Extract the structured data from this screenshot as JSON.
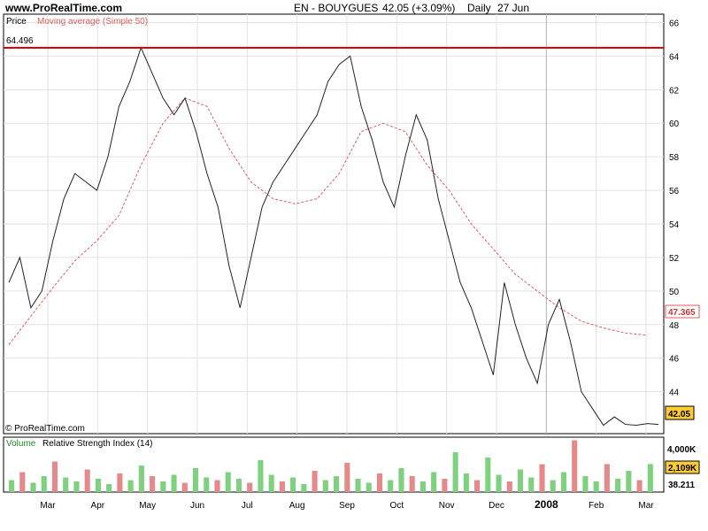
{
  "header": {
    "site": "www.ProRealTime.com",
    "instrument": "EN - BOUYGUES",
    "last_price": "42.05 (+3.09%)",
    "period": "Daily",
    "date": "27 Jun"
  },
  "price_panel": {
    "label_price": "Price",
    "label_ma": "Moving average (Simple 50)",
    "copyright": "© ProRealTime.com",
    "hline_label": "64.496",
    "ma_label": "47.365",
    "last_label": "42.05"
  },
  "volume_panel": {
    "label_volume": "Volume",
    "label_rsi": "Relative Strength Index (14)",
    "scale_top": "4,000K",
    "vol_badge": "2,109K",
    "rsi_value": "38.211"
  },
  "colors": {
    "up": "#1f8a1f",
    "down": "#c0393b",
    "ma": "#e05b5b",
    "hline": "#e00000",
    "volume_up": "#7fd07f",
    "volume_down": "#e58a8a",
    "grid": "#e2e2e2"
  },
  "chart_data": [
    {
      "type": "line",
      "title": "EN - BOUYGUES",
      "yaxis_ticks": [
        44,
        46,
        48,
        50,
        52,
        54,
        56,
        58,
        60,
        62,
        64,
        66
      ],
      "ylim": [
        41.5,
        66.5
      ],
      "month_labels": [
        "Mar",
        "Apr",
        "May",
        "Jun",
        "Jul",
        "Aug",
        "Sep",
        "Oct",
        "Nov",
        "Dec",
        "2008",
        "Feb",
        "Mar"
      ],
      "horizontal_line": 64.496,
      "series": [
        {
          "name": "Price",
          "x": [
            0,
            5,
            10,
            15,
            20,
            25,
            30,
            35,
            40,
            45,
            50,
            55,
            60,
            65,
            70,
            75,
            80,
            85,
            90,
            95,
            100,
            105,
            110,
            115,
            120,
            125,
            130,
            135,
            140,
            145,
            150,
            155,
            160,
            165,
            170,
            175,
            180,
            185,
            190,
            195,
            200,
            205,
            210,
            215,
            220,
            225,
            230,
            235,
            240,
            245,
            250,
            255,
            260,
            265,
            270,
            275,
            280,
            285,
            290,
            295
          ],
          "values": [
            50.5,
            52.0,
            49.0,
            50.0,
            53.0,
            55.5,
            57.0,
            56.5,
            56.0,
            58.0,
            61.0,
            62.5,
            64.5,
            63.0,
            61.5,
            60.5,
            61.5,
            59.5,
            57.0,
            55.0,
            51.5,
            49.0,
            52.0,
            55.0,
            56.5,
            57.5,
            58.5,
            59.5,
            60.5,
            62.5,
            63.5,
            64.0,
            61.0,
            59.0,
            56.5,
            55.0,
            58.0,
            60.5,
            59.0,
            55.5,
            53.0,
            50.5,
            49.0,
            47.0,
            45.0,
            50.5,
            48.0,
            46.0,
            44.5,
            48.0,
            49.5,
            47.0,
            44.0,
            43.0,
            42.0,
            42.5,
            42.05,
            42.0,
            42.1,
            42.05
          ]
        },
        {
          "name": "Moving average (Simple 50)",
          "x": [
            0,
            10,
            20,
            30,
            40,
            50,
            60,
            70,
            80,
            90,
            100,
            110,
            120,
            130,
            140,
            150,
            160,
            170,
            180,
            190,
            200,
            210,
            220,
            230,
            240,
            250,
            260,
            270,
            280,
            290
          ],
          "values": [
            46.8,
            48.5,
            50.2,
            51.8,
            53.0,
            54.5,
            57.5,
            60.0,
            61.5,
            61.0,
            58.5,
            56.5,
            55.5,
            55.2,
            55.5,
            57.0,
            59.5,
            60.0,
            59.5,
            57.5,
            56.0,
            54.0,
            52.5,
            51.0,
            50.0,
            49.0,
            48.2,
            47.8,
            47.5,
            47.365
          ]
        }
      ]
    },
    {
      "type": "bar",
      "title": "Volume",
      "ylim": [
        0,
        4000
      ],
      "yunit": "K",
      "values": [
        900,
        1500,
        700,
        1200,
        2300,
        1100,
        800,
        1700,
        1000,
        600,
        1400,
        900,
        2000,
        1200,
        800,
        1300,
        700,
        1800,
        1100,
        900,
        1500,
        1000,
        700,
        2400,
        1300,
        800,
        1100,
        600,
        1600,
        900,
        1200,
        2200,
        1000,
        700,
        1400,
        900,
        1800,
        1200,
        800,
        1500,
        1000,
        3000,
        1400,
        900,
        2600,
        1300,
        800,
        1700,
        1100,
        2100,
        900,
        1500,
        3900,
        1200,
        800,
        2109,
        1000,
        1600,
        900,
        2109
      ]
    }
  ]
}
